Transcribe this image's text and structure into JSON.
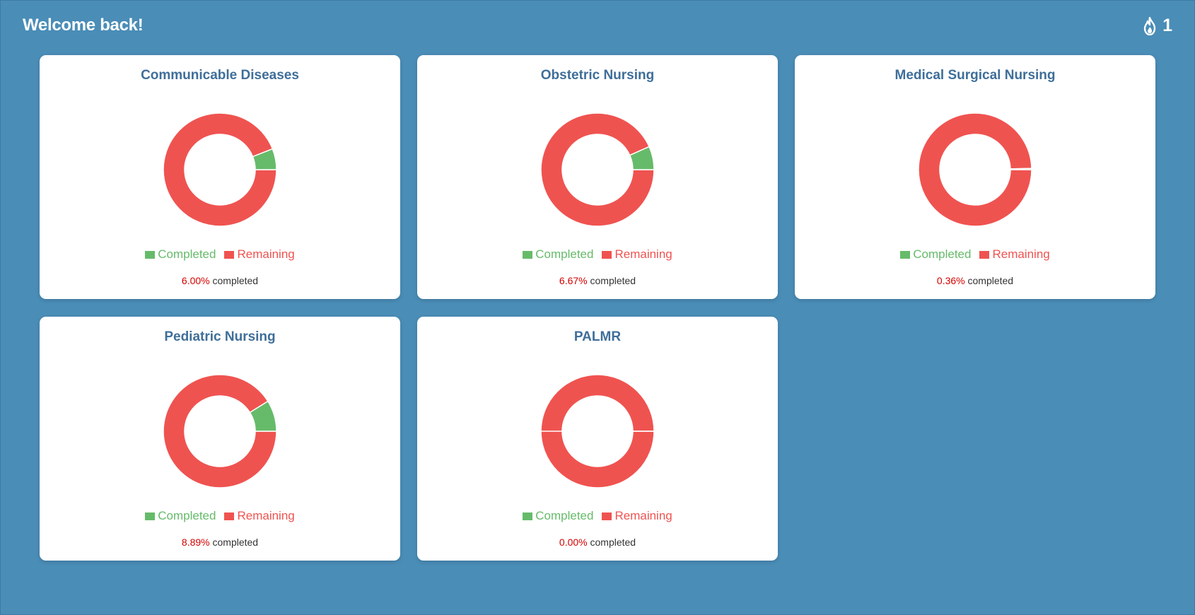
{
  "header": {
    "welcome": "Welcome back!",
    "streak_count": "1",
    "streak_icon": "fire-icon"
  },
  "colors": {
    "background": "#4a8db7",
    "completed": "#66bb6a",
    "remaining": "#ef5350",
    "title": "#3f6e99",
    "percent": "#d50000"
  },
  "legend": {
    "completed_label": "Completed",
    "remaining_label": "Remaining"
  },
  "completed_suffix": "completed",
  "courses": [
    {
      "title": "Communicable Diseases",
      "percent_text": "6.00%",
      "completed_fraction": 0.06
    },
    {
      "title": "Obstetric Nursing",
      "percent_text": "6.67%",
      "completed_fraction": 0.0667
    },
    {
      "title": "Medical Surgical Nursing",
      "percent_text": "0.36%",
      "completed_fraction": 0.0036
    },
    {
      "title": "Pediatric Nursing",
      "percent_text": "8.89%",
      "completed_fraction": 0.0889
    },
    {
      "title": "PALMR",
      "percent_text": "0.00%",
      "completed_fraction": 0.0
    }
  ]
}
